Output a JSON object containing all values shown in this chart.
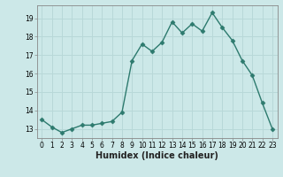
{
  "x": [
    0,
    1,
    2,
    3,
    4,
    5,
    6,
    7,
    8,
    9,
    10,
    11,
    12,
    13,
    14,
    15,
    16,
    17,
    18,
    19,
    20,
    21,
    22,
    23
  ],
  "y": [
    13.5,
    13.1,
    12.8,
    13.0,
    13.2,
    13.2,
    13.3,
    13.4,
    13.9,
    16.7,
    17.6,
    17.2,
    17.7,
    18.8,
    18.2,
    18.7,
    18.3,
    19.3,
    18.5,
    17.8,
    16.7,
    15.9,
    14.4,
    13.0
  ],
  "xlim": [
    -0.5,
    23.5
  ],
  "ylim": [
    12.5,
    19.7
  ],
  "yticks": [
    13,
    14,
    15,
    16,
    17,
    18,
    19
  ],
  "xticks": [
    0,
    1,
    2,
    3,
    4,
    5,
    6,
    7,
    8,
    9,
    10,
    11,
    12,
    13,
    14,
    15,
    16,
    17,
    18,
    19,
    20,
    21,
    22,
    23
  ],
  "xlabel": "Humidex (Indice chaleur)",
  "line_color": "#2d7a6e",
  "bg_color": "#cce8e8",
  "grid_color": "#b8d8d8",
  "marker": "D",
  "marker_size": 2.5,
  "line_width": 1.0,
  "xlabel_fontsize": 7,
  "tick_fontsize": 5.5
}
